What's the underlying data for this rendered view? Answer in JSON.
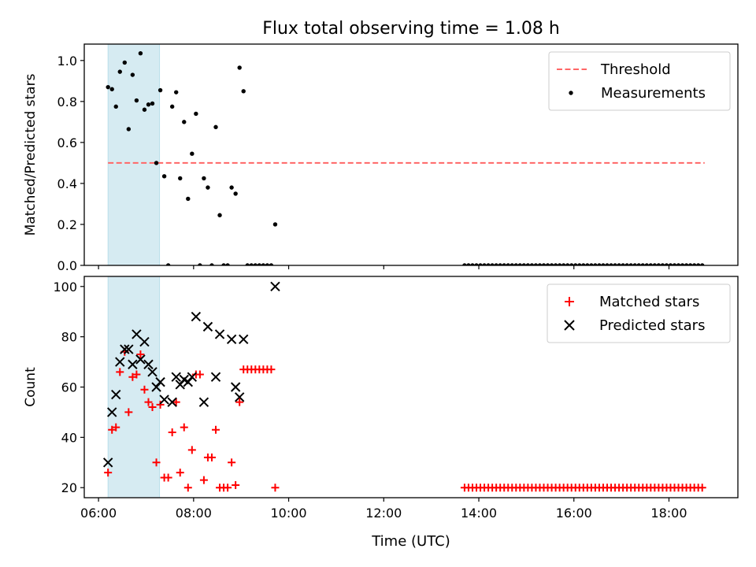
{
  "figure": {
    "title": "Flux total observing time = 1.08 h",
    "xlabel": "Time (UTC)"
  },
  "chart_data": [
    {
      "type": "scatter",
      "panel": "top",
      "ylabel": "Matched/Predicted stars",
      "xlim": [
        "05:42",
        "19:27"
      ],
      "ylim": [
        0,
        1.08
      ],
      "yticks": [
        "0.0",
        "0.2",
        "0.4",
        "0.6",
        "0.8",
        "1.0"
      ],
      "xticks": [
        "06:00",
        "08:00",
        "10:00",
        "12:00",
        "14:00",
        "16:00",
        "18:00"
      ],
      "show_xticklabels": false,
      "observing_span": [
        "06:12",
        "07:17"
      ],
      "span_color": "#add8e6",
      "threshold": {
        "name": "Threshold",
        "value": 0.5,
        "color": "#ff6666",
        "x_range": [
          "06:12",
          "18:45"
        ]
      },
      "series": [
        {
          "name": "Measurements",
          "color": "#000000",
          "points": [
            [
              "06:12",
              0.87
            ],
            [
              "06:17",
              0.86
            ],
            [
              "06:22",
              0.775
            ],
            [
              "06:27",
              0.945
            ],
            [
              "06:33",
              0.99
            ],
            [
              "06:38",
              0.665
            ],
            [
              "06:43",
              0.93
            ],
            [
              "06:48",
              0.805
            ],
            [
              "06:53",
              1.035
            ],
            [
              "06:58",
              0.76
            ],
            [
              "07:03",
              0.785
            ],
            [
              "07:08",
              0.79
            ],
            [
              "07:13",
              0.5
            ],
            [
              "07:18",
              0.855
            ],
            [
              "07:23",
              0.435
            ],
            [
              "07:28",
              0.0
            ],
            [
              "07:33",
              0.775
            ],
            [
              "07:38",
              0.845
            ],
            [
              "07:43",
              0.425
            ],
            [
              "07:48",
              0.7
            ],
            [
              "07:53",
              0.325
            ],
            [
              "07:58",
              0.545
            ],
            [
              "08:03",
              0.74
            ],
            [
              "08:08",
              0.0
            ],
            [
              "08:13",
              0.425
            ],
            [
              "08:18",
              0.38
            ],
            [
              "08:23",
              0.0
            ],
            [
              "08:28",
              0.675
            ],
            [
              "08:33",
              0.245
            ],
            [
              "08:38",
              0.0
            ],
            [
              "08:43",
              0.0
            ],
            [
              "08:48",
              0.38
            ],
            [
              "08:53",
              0.35
            ],
            [
              "08:58",
              0.965
            ],
            [
              "09:03",
              0.85
            ],
            [
              "09:08",
              0.0
            ],
            [
              "09:13",
              0.0
            ],
            [
              "09:18",
              0.0
            ],
            [
              "09:23",
              0.0
            ],
            [
              "09:28",
              0.0
            ],
            [
              "09:33",
              0.0
            ],
            [
              "09:38",
              0.0
            ],
            [
              "09:43",
              0.2
            ]
          ],
          "late_zero_run": {
            "start": "13:42",
            "end": "18:45",
            "step_min": 5,
            "value": 0.0
          }
        }
      ],
      "legend": {
        "placement": "top-right",
        "entries": [
          "Threshold",
          "Measurements"
        ]
      }
    },
    {
      "type": "scatter",
      "panel": "bottom",
      "ylabel": "Count",
      "xlim": [
        "05:42",
        "19:27"
      ],
      "ylim": [
        16,
        104
      ],
      "yticks": [
        "20",
        "40",
        "60",
        "80",
        "100"
      ],
      "xticks": [
        "06:00",
        "08:00",
        "10:00",
        "12:00",
        "14:00",
        "16:00",
        "18:00"
      ],
      "observing_span": [
        "06:12",
        "07:17"
      ],
      "span_color": "#add8e6",
      "series": [
        {
          "name": "Matched stars",
          "marker": "plus",
          "color": "#ff0000",
          "points": [
            [
              "06:12",
              26
            ],
            [
              "06:17",
              43
            ],
            [
              "06:22",
              44
            ],
            [
              "06:27",
              66
            ],
            [
              "06:33",
              74
            ],
            [
              "06:38",
              50
            ],
            [
              "06:43",
              64
            ],
            [
              "06:48",
              65
            ],
            [
              "06:53",
              73
            ],
            [
              "06:58",
              59
            ],
            [
              "07:03",
              54
            ],
            [
              "07:08",
              52
            ],
            [
              "07:13",
              30
            ],
            [
              "07:18",
              53
            ],
            [
              "07:23",
              24
            ],
            [
              "07:28",
              24
            ],
            [
              "07:33",
              42
            ],
            [
              "07:38",
              54
            ],
            [
              "07:43",
              26
            ],
            [
              "07:48",
              44
            ],
            [
              "07:53",
              20
            ],
            [
              "07:58",
              35
            ],
            [
              "08:03",
              65
            ],
            [
              "08:08",
              65
            ],
            [
              "08:13",
              23
            ],
            [
              "08:18",
              32
            ],
            [
              "08:23",
              32
            ],
            [
              "08:28",
              43
            ],
            [
              "08:33",
              20
            ],
            [
              "08:38",
              20
            ],
            [
              "08:43",
              20
            ],
            [
              "08:48",
              30
            ],
            [
              "08:53",
              21
            ],
            [
              "08:58",
              54
            ],
            [
              "09:03",
              67
            ],
            [
              "09:08",
              67
            ],
            [
              "09:13",
              67
            ],
            [
              "09:18",
              67
            ],
            [
              "09:23",
              67
            ],
            [
              "09:28",
              67
            ],
            [
              "09:33",
              67
            ],
            [
              "09:38",
              67
            ],
            [
              "09:43",
              20
            ]
          ],
          "late_run": {
            "start": "13:42",
            "end": "18:45",
            "step_min": 5,
            "value": 20
          }
        },
        {
          "name": "Predicted stars",
          "marker": "x",
          "color": "#000000",
          "points": [
            [
              "06:12",
              30
            ],
            [
              "06:17",
              50
            ],
            [
              "06:22",
              57
            ],
            [
              "06:27",
              70
            ],
            [
              "06:33",
              75
            ],
            [
              "06:38",
              75
            ],
            [
              "06:43",
              69
            ],
            [
              "06:48",
              81
            ],
            [
              "06:53",
              71
            ],
            [
              "06:58",
              78
            ],
            [
              "07:03",
              69
            ],
            [
              "07:08",
              66
            ],
            [
              "07:13",
              60
            ],
            [
              "07:18",
              62
            ],
            [
              "07:23",
              55
            ],
            [
              "07:33",
              54
            ],
            [
              "07:38",
              64
            ],
            [
              "07:43",
              61
            ],
            [
              "07:48",
              63
            ],
            [
              "07:53",
              62
            ],
            [
              "07:58",
              64
            ],
            [
              "08:03",
              88
            ],
            [
              "08:13",
              54
            ],
            [
              "08:18",
              84
            ],
            [
              "08:28",
              64
            ],
            [
              "08:33",
              81
            ],
            [
              "08:48",
              79
            ],
            [
              "08:53",
              60
            ],
            [
              "08:58",
              56
            ],
            [
              "09:03",
              79
            ],
            [
              "09:43",
              100
            ]
          ]
        }
      ],
      "legend": {
        "placement": "top-right",
        "entries": [
          "Matched stars",
          "Predicted stars"
        ]
      }
    }
  ]
}
